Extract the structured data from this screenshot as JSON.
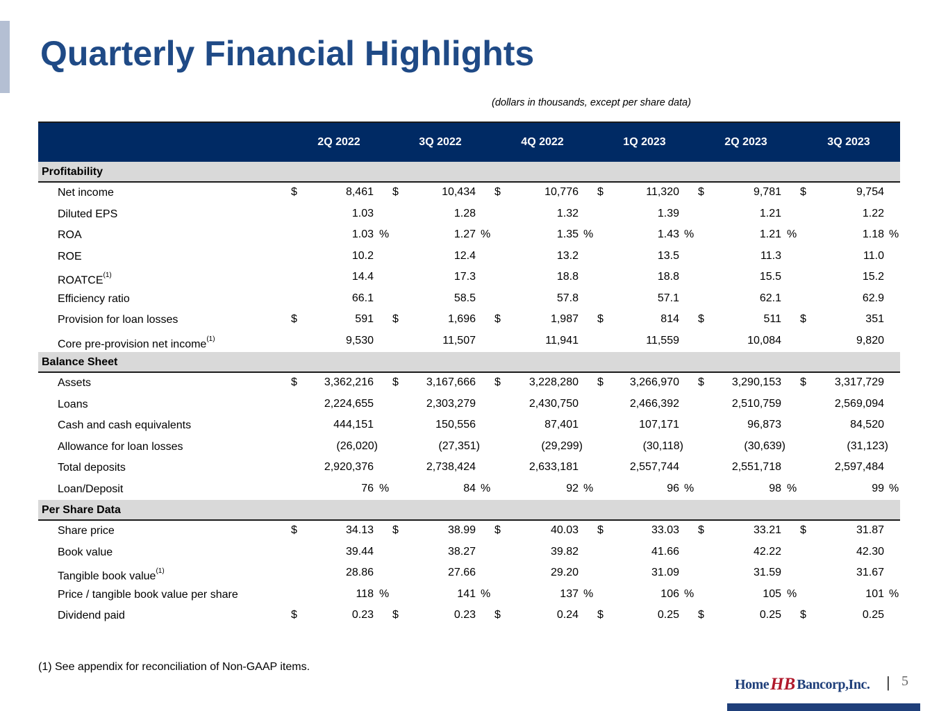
{
  "title": "Quarterly Financial Highlights",
  "units_note": "(dollars in thousands, except per share data)",
  "columns": [
    "2Q 2022",
    "3Q 2022",
    "4Q 2022",
    "1Q 2023",
    "2Q 2023",
    "3Q 2023"
  ],
  "sections": [
    {
      "name": "Profitability",
      "rows": [
        {
          "label": "Net income",
          "sup": "",
          "cur": true,
          "pct": false,
          "values": [
            "8,461",
            "10,434",
            "10,776",
            "11,320",
            "9,781",
            "9,754"
          ]
        },
        {
          "label": "Diluted EPS",
          "sup": "",
          "cur": false,
          "pct": false,
          "values": [
            "1.03",
            "1.28",
            "1.32",
            "1.39",
            "1.21",
            "1.22"
          ]
        },
        {
          "label": "ROA",
          "sup": "",
          "cur": false,
          "pct": true,
          "values": [
            "1.03",
            "1.27",
            "1.35",
            "1.43",
            "1.21",
            "1.18"
          ]
        },
        {
          "label": "ROE",
          "sup": "",
          "cur": false,
          "pct": false,
          "values": [
            "10.2",
            "12.4",
            "13.2",
            "13.5",
            "11.3",
            "11.0"
          ]
        },
        {
          "label": "ROATCE",
          "sup": "(1)",
          "cur": false,
          "pct": false,
          "values": [
            "14.4",
            "17.3",
            "18.8",
            "18.8",
            "15.5",
            "15.2"
          ]
        },
        {
          "label": "Efficiency ratio",
          "sup": "",
          "cur": false,
          "pct": false,
          "values": [
            "66.1",
            "58.5",
            "57.8",
            "57.1",
            "62.1",
            "62.9"
          ]
        },
        {
          "label": "Provision for loan losses",
          "sup": "",
          "cur": true,
          "pct": false,
          "values": [
            "591",
            "1,696",
            "1,987",
            "814",
            "511",
            "351"
          ]
        },
        {
          "label": "Core pre-provision net income",
          "sup": "(1)",
          "cur": false,
          "pct": false,
          "values": [
            "9,530",
            "11,507",
            "11,941",
            "11,559",
            "10,084",
            "9,820"
          ]
        }
      ]
    },
    {
      "name": "Balance Sheet",
      "rows": [
        {
          "label": "Assets",
          "sup": "",
          "cur": true,
          "pct": false,
          "values": [
            "3,362,216",
            "3,167,666",
            "3,228,280",
            "3,266,970",
            "3,290,153",
            "3,317,729"
          ]
        },
        {
          "label": "Loans",
          "sup": "",
          "cur": false,
          "pct": false,
          "values": [
            "2,224,655",
            "2,303,279",
            "2,430,750",
            "2,466,392",
            "2,510,759",
            "2,569,094"
          ]
        },
        {
          "label": "Cash and cash equivalents",
          "sup": "",
          "cur": false,
          "pct": false,
          "values": [
            "444,151",
            "150,556",
            "87,401",
            "107,171",
            "96,873",
            "84,520"
          ]
        },
        {
          "label": "Allowance for loan losses",
          "sup": "",
          "cur": false,
          "pct": false,
          "paren": true,
          "values": [
            "(26,020)",
            "(27,351)",
            "(29,299)",
            "(30,118)",
            "(30,639)",
            "(31,123)"
          ]
        },
        {
          "label": "Total deposits",
          "sup": "",
          "cur": false,
          "pct": false,
          "values": [
            "2,920,376",
            "2,738,424",
            "2,633,181",
            "2,557,744",
            "2,551,718",
            "2,597,484"
          ]
        },
        {
          "label": "Loan/Deposit",
          "sup": "",
          "cur": false,
          "pct": true,
          "values": [
            "76",
            "84",
            "92",
            "96",
            "98",
            "99"
          ]
        }
      ]
    },
    {
      "name": "Per Share Data",
      "rows": [
        {
          "label": "Share price",
          "sup": "",
          "cur": true,
          "pct": false,
          "values": [
            "34.13",
            "38.99",
            "40.03",
            "33.03",
            "33.21",
            "31.87"
          ]
        },
        {
          "label": "Book value",
          "sup": "",
          "cur": false,
          "pct": false,
          "values": [
            "39.44",
            "38.27",
            "39.82",
            "41.66",
            "42.22",
            "42.30"
          ]
        },
        {
          "label": "Tangible book value",
          "sup": "(1)",
          "cur": false,
          "pct": false,
          "values": [
            "28.86",
            "27.66",
            "29.20",
            "31.09",
            "31.59",
            "31.67"
          ]
        },
        {
          "label": "Price / tangible book value per share",
          "sup": "",
          "cur": false,
          "pct": true,
          "values": [
            "118",
            "141",
            "137",
            "106",
            "105",
            "101"
          ]
        },
        {
          "label": "Dividend paid",
          "sup": "",
          "cur": true,
          "pct": false,
          "values": [
            "0.23",
            "0.23",
            "0.24",
            "0.25",
            "0.25",
            "0.25"
          ]
        }
      ]
    }
  ],
  "currency_symbol": "$",
  "percent_symbol": "%",
  "footnote": "(1)   See appendix for reconciliation of Non-GAAP items.",
  "logo": {
    "home": "Home",
    "mono": "HB",
    "bancorp": "Bancorp,Inc."
  },
  "page_number": "5",
  "colors": {
    "title": "#1f4a86",
    "header_bg": "#002a64",
    "section_bg": "#d9d9d9",
    "logo_red": "#b0182b"
  }
}
